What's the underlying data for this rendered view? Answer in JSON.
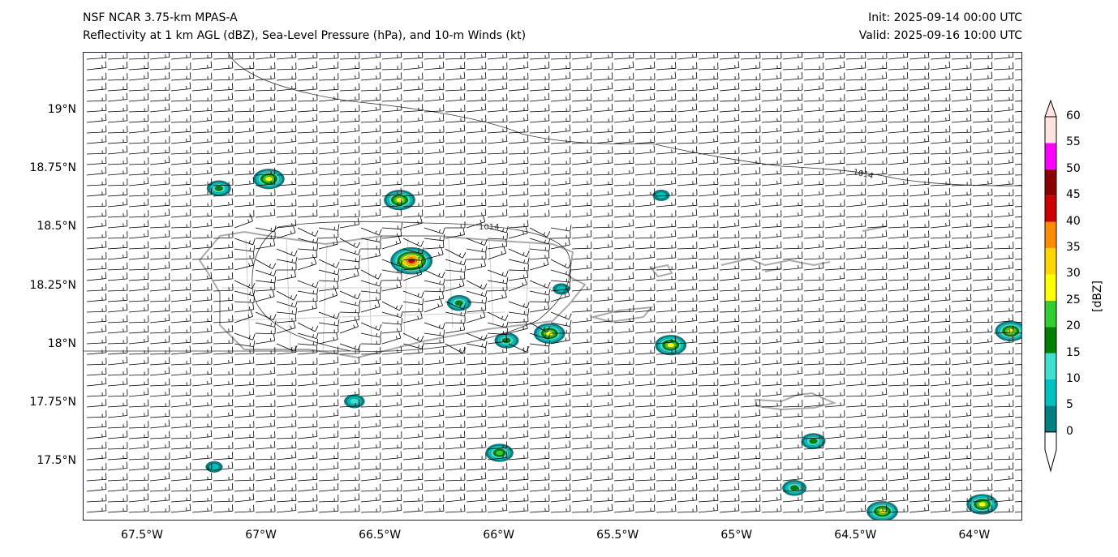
{
  "header": {
    "model": "NSF NCAR 3.75-km MPAS-A",
    "fields": "Reflectivity at 1 km AGL (dBZ), Sea-Level Pressure (hPa), and 10-m Winds (kt)",
    "init": "Init: 2025-09-14 00:00 UTC",
    "valid": "Valid: 2025-09-16 10:00 UTC"
  },
  "axes": {
    "lon_ticks": [
      "67.5°W",
      "67°W",
      "66.5°W",
      "66°W",
      "65.5°W",
      "65°W",
      "64.5°W",
      "64°W"
    ],
    "lat_ticks": [
      "19°N",
      "18.75°N",
      "18.5°N",
      "18.25°N",
      "18°N",
      "17.75°N",
      "17.5°N"
    ],
    "lon_values": [
      -67.5,
      -67,
      -66.5,
      -66,
      -65.5,
      -65,
      -64.5,
      -64
    ],
    "lat_values": [
      19,
      18.75,
      18.5,
      18.25,
      18,
      17.75,
      17.5
    ],
    "lon_range": [
      -67.75,
      -63.8
    ],
    "lat_range": [
      17.25,
      19.25
    ]
  },
  "contours": {
    "labels": [
      "1014",
      "1014"
    ]
  },
  "colorbar": {
    "label": "[dBZ]",
    "ticks": [
      "0",
      "5",
      "10",
      "15",
      "20",
      "25",
      "30",
      "35",
      "40",
      "45",
      "50",
      "55",
      "60"
    ],
    "colors": [
      "#008080",
      "#00c0c0",
      "#40e0d0",
      "#008000",
      "#32cd32",
      "#ffff00",
      "#ffd700",
      "#ff8c00",
      "#cc0000",
      "#8b0000",
      "#ff00ff",
      "#ffe4e1"
    ]
  },
  "storm_cells": [
    {
      "lon": -67.18,
      "lat": 18.67,
      "max_dbz": 20
    },
    {
      "lon": -66.97,
      "lat": 18.71,
      "max_dbz": 30
    },
    {
      "lon": -66.42,
      "lat": 18.62,
      "max_dbz": 30
    },
    {
      "lon": -66.37,
      "lat": 18.36,
      "max_dbz": 45
    },
    {
      "lon": -66.17,
      "lat": 18.18,
      "max_dbz": 20
    },
    {
      "lon": -65.74,
      "lat": 18.24,
      "max_dbz": 10
    },
    {
      "lon": -65.97,
      "lat": 18.02,
      "max_dbz": 20
    },
    {
      "lon": -65.79,
      "lat": 18.05,
      "max_dbz": 30
    },
    {
      "lon": -65.28,
      "lat": 18.0,
      "max_dbz": 30
    },
    {
      "lon": -65.32,
      "lat": 18.64,
      "max_dbz": 10
    },
    {
      "lon": -66.61,
      "lat": 17.76,
      "max_dbz": 15
    },
    {
      "lon": -66.0,
      "lat": 17.54,
      "max_dbz": 25
    },
    {
      "lon": -67.2,
      "lat": 17.48,
      "max_dbz": 10
    },
    {
      "lon": -64.68,
      "lat": 17.59,
      "max_dbz": 20
    },
    {
      "lon": -64.76,
      "lat": 17.39,
      "max_dbz": 20
    },
    {
      "lon": -64.39,
      "lat": 17.29,
      "max_dbz": 30
    },
    {
      "lon": -63.97,
      "lat": 17.32,
      "max_dbz": 30
    },
    {
      "lon": -63.85,
      "lat": 18.06,
      "max_dbz": 30
    }
  ]
}
